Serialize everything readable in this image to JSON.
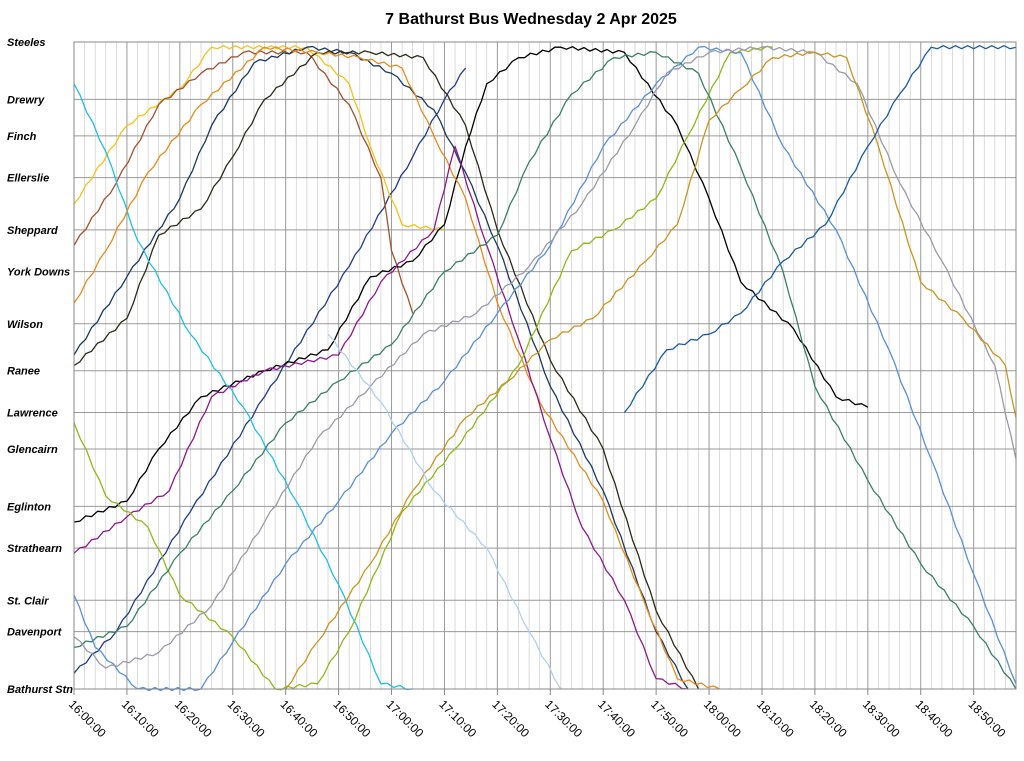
{
  "chart_data": {
    "type": "line",
    "title": "7 Bathurst Bus Wednesday 2 Apr 2025",
    "xlim": [
      "16:00:00",
      "18:58:00"
    ],
    "x_ticks": [
      "16:00:00",
      "16:10:00",
      "16:20:00",
      "16:30:00",
      "16:40:00",
      "16:50:00",
      "17:00:00",
      "17:10:00",
      "17:20:00",
      "17:30:00",
      "17:40:00",
      "17:50:00",
      "18:00:00",
      "18:10:00",
      "18:20:00",
      "18:30:00",
      "18:40:00",
      "18:50:00"
    ],
    "stops": [
      {
        "name": "Steeles",
        "km": 0
      },
      {
        "name": "Drewry",
        "km": 1.1
      },
      {
        "name": "Finch",
        "km": 1.8
      },
      {
        "name": "Ellerslie",
        "km": 2.6
      },
      {
        "name": "Sheppard",
        "km": 3.6
      },
      {
        "name": "York Downs",
        "km": 4.4
      },
      {
        "name": "Wilson",
        "km": 5.4
      },
      {
        "name": "Ranee",
        "km": 6.3
      },
      {
        "name": "Lawrence",
        "km": 7.1
      },
      {
        "name": "Glencairn",
        "km": 7.8
      },
      {
        "name": "Eglinton",
        "km": 8.9
      },
      {
        "name": "Strathearn",
        "km": 9.7
      },
      {
        "name": "St. Clair",
        "km": 10.7
      },
      {
        "name": "Davenport",
        "km": 11.3
      },
      {
        "name": "Bathurst Stn",
        "km": 12.4
      }
    ],
    "ylim": [
      0,
      12.4
    ],
    "y_inverted": true,
    "trips": [
      {
        "color": "#1f3c88",
        "points": [
          [
            "16:00",
            12.1
          ],
          [
            "16:08",
            11.3
          ],
          [
            "16:22",
            9.0
          ],
          [
            "16:36",
            6.8
          ],
          [
            "16:52",
            4.3
          ],
          [
            "17:04",
            2.2
          ],
          [
            "17:10",
            1.1
          ],
          [
            "17:14",
            0.5
          ]
        ]
      },
      {
        "color": "#f2c318",
        "points": [
          [
            "16:00",
            3.1
          ],
          [
            "16:10",
            1.6
          ],
          [
            "16:20",
            0.9
          ],
          [
            "16:26",
            0.1
          ],
          [
            "16:44",
            0.1
          ],
          [
            "16:52",
            0.8
          ],
          [
            "16:56",
            2.0
          ],
          [
            "17:02",
            3.5
          ],
          [
            "17:10",
            3.6
          ]
        ]
      },
      {
        "color": "#a0522d",
        "points": [
          [
            "16:00",
            3.9
          ],
          [
            "16:08",
            2.7
          ],
          [
            "16:16",
            1.2
          ],
          [
            "16:24",
            0.6
          ],
          [
            "16:32",
            0.2
          ],
          [
            "16:44",
            0.2
          ],
          [
            "16:52",
            1.2
          ],
          [
            "16:58",
            2.6
          ],
          [
            "17:00",
            4.0
          ],
          [
            "17:04",
            5.2
          ]
        ]
      },
      {
        "color": "#000000",
        "points": [
          [
            "16:00",
            9.2
          ],
          [
            "16:10",
            8.8
          ],
          [
            "16:16",
            7.8
          ],
          [
            "16:24",
            6.8
          ],
          [
            "16:36",
            6.3
          ],
          [
            "16:48",
            5.9
          ],
          [
            "16:56",
            4.5
          ],
          [
            "17:04",
            4.2
          ],
          [
            "17:10",
            3.5
          ],
          [
            "17:14",
            2.0
          ],
          [
            "17:18",
            0.8
          ],
          [
            "17:24",
            0.3
          ],
          [
            "17:32",
            0.1
          ],
          [
            "17:44",
            0.2
          ],
          [
            "17:54",
            1.6
          ],
          [
            "18:00",
            3.0
          ],
          [
            "18:06",
            4.6
          ],
          [
            "18:16",
            5.5
          ],
          [
            "18:24",
            6.8
          ],
          [
            "18:30",
            7.0
          ]
        ]
      },
      {
        "color": "#1a3a5c",
        "points": [
          [
            "16:00",
            6.0
          ],
          [
            "16:10",
            4.5
          ],
          [
            "16:20",
            3.0
          ],
          [
            "16:26",
            1.6
          ],
          [
            "16:34",
            0.4
          ],
          [
            "16:44",
            0.1
          ],
          [
            "16:52",
            0.2
          ],
          [
            "17:00",
            0.6
          ],
          [
            "17:08",
            1.3
          ],
          [
            "17:14",
            2.5
          ],
          [
            "17:20",
            3.9
          ],
          [
            "17:30",
            6.6
          ],
          [
            "17:40",
            8.6
          ],
          [
            "17:50",
            11.3
          ],
          [
            "17:56",
            12.4
          ]
        ]
      },
      {
        "color": "#2b2b1a",
        "points": [
          [
            "16:00",
            6.2
          ],
          [
            "16:10",
            5.3
          ],
          [
            "16:16",
            3.7
          ],
          [
            "16:24",
            3.2
          ],
          [
            "16:30",
            2.2
          ],
          [
            "16:36",
            1.1
          ],
          [
            "16:46",
            0.2
          ],
          [
            "16:56",
            0.2
          ],
          [
            "17:06",
            0.3
          ],
          [
            "17:14",
            1.6
          ],
          [
            "17:20",
            3.6
          ],
          [
            "17:30",
            6.1
          ],
          [
            "17:40",
            7.8
          ],
          [
            "17:50",
            10.9
          ],
          [
            "17:58",
            12.4
          ]
        ]
      },
      {
        "color": "#20c0e0",
        "points": [
          [
            "16:00",
            0.8
          ],
          [
            "16:06",
            2.1
          ],
          [
            "16:12",
            3.8
          ],
          [
            "16:22",
            5.6
          ],
          [
            "16:32",
            7.0
          ],
          [
            "16:42",
            8.8
          ],
          [
            "16:50",
            10.4
          ],
          [
            "16:58",
            12.3
          ],
          [
            "17:04",
            12.4
          ]
        ]
      },
      {
        "color": "#e88a1a",
        "points": [
          [
            "16:00",
            5.0
          ],
          [
            "16:06",
            4.0
          ],
          [
            "16:14",
            2.5
          ],
          [
            "16:24",
            1.2
          ],
          [
            "16:36",
            0.1
          ],
          [
            "16:46",
            0.2
          ],
          [
            "16:54",
            0.3
          ],
          [
            "17:02",
            0.5
          ],
          [
            "17:08",
            1.8
          ],
          [
            "17:14",
            3.0
          ],
          [
            "17:20",
            5.0
          ],
          [
            "17:28",
            6.9
          ],
          [
            "17:40",
            8.8
          ],
          [
            "17:48",
            10.8
          ],
          [
            "17:54",
            12.2
          ],
          [
            "18:02",
            12.4
          ]
        ]
      },
      {
        "color": "#8b1a8b",
        "points": [
          [
            "16:00",
            9.8
          ],
          [
            "16:10",
            9.1
          ],
          [
            "16:18",
            8.6
          ],
          [
            "16:26",
            6.8
          ],
          [
            "16:36",
            6.3
          ],
          [
            "16:50",
            6.0
          ],
          [
            "16:58",
            4.6
          ],
          [
            "17:08",
            3.6
          ],
          [
            "17:12",
            2.0
          ],
          [
            "17:18",
            3.9
          ],
          [
            "17:24",
            5.7
          ],
          [
            "17:30",
            7.6
          ],
          [
            "17:36",
            9.3
          ],
          [
            "17:44",
            10.7
          ],
          [
            "17:50",
            12.2
          ],
          [
            "17:56",
            12.4
          ]
        ]
      },
      {
        "color": "#8fb81a",
        "points": [
          [
            "16:00",
            7.3
          ],
          [
            "16:06",
            8.7
          ],
          [
            "16:14",
            9.3
          ],
          [
            "16:20",
            10.6
          ],
          [
            "16:30",
            11.4
          ],
          [
            "16:38",
            12.4
          ],
          [
            "16:46",
            12.3
          ],
          [
            "16:52",
            11.3
          ],
          [
            "17:02",
            9.0
          ],
          [
            "17:12",
            7.8
          ],
          [
            "17:24",
            6.2
          ],
          [
            "17:34",
            4.0
          ],
          [
            "17:42",
            3.6
          ],
          [
            "17:50",
            3.0
          ],
          [
            "17:56",
            1.8
          ],
          [
            "18:04",
            0.2
          ],
          [
            "18:12",
            0.1
          ]
        ]
      },
      {
        "color": "#5a8fd6",
        "points": [
          [
            "16:00",
            10.6
          ],
          [
            "16:04",
            11.6
          ],
          [
            "16:12",
            12.4
          ],
          [
            "16:24",
            12.4
          ],
          [
            "16:30",
            11.5
          ],
          [
            "16:40",
            10.0
          ],
          [
            "16:50",
            8.8
          ],
          [
            "17:00",
            7.5
          ],
          [
            "17:10",
            6.5
          ],
          [
            "17:20",
            5.2
          ],
          [
            "17:30",
            3.9
          ],
          [
            "17:40",
            2.0
          ],
          [
            "17:50",
            0.8
          ],
          [
            "17:58",
            0.1
          ],
          [
            "18:06",
            0.2
          ],
          [
            "18:14",
            2.0
          ],
          [
            "18:24",
            3.6
          ],
          [
            "18:34",
            5.9
          ],
          [
            "18:42",
            8.0
          ],
          [
            "18:50",
            10.2
          ],
          [
            "18:58",
            12.3
          ]
        ]
      },
      {
        "color": "#3a7f6a",
        "points": [
          [
            "16:00",
            11.6
          ],
          [
            "16:10",
            11.2
          ],
          [
            "16:20",
            9.8
          ],
          [
            "16:30",
            8.6
          ],
          [
            "16:40",
            7.3
          ],
          [
            "16:50",
            6.5
          ],
          [
            "17:00",
            5.8
          ],
          [
            "17:10",
            4.4
          ],
          [
            "17:20",
            3.7
          ],
          [
            "17:26",
            2.3
          ],
          [
            "17:34",
            1.0
          ],
          [
            "17:42",
            0.3
          ],
          [
            "17:50",
            0.2
          ],
          [
            "17:58",
            0.6
          ],
          [
            "18:06",
            2.4
          ],
          [
            "18:14",
            4.4
          ],
          [
            "18:20",
            6.6
          ],
          [
            "18:30",
            8.4
          ],
          [
            "18:40",
            10.0
          ],
          [
            "18:50",
            11.2
          ],
          [
            "18:58",
            12.4
          ]
        ]
      },
      {
        "color": "#9a9aa8",
        "points": [
          [
            "16:00",
            11.4
          ],
          [
            "16:06",
            12.0
          ],
          [
            "16:16",
            11.7
          ],
          [
            "16:26",
            10.8
          ],
          [
            "16:36",
            9.2
          ],
          [
            "16:46",
            7.6
          ],
          [
            "16:56",
            6.6
          ],
          [
            "17:06",
            5.6
          ],
          [
            "17:16",
            5.2
          ],
          [
            "17:26",
            4.3
          ],
          [
            "17:36",
            3.1
          ],
          [
            "17:46",
            1.6
          ],
          [
            "17:52",
            0.6
          ],
          [
            "18:00",
            0.2
          ],
          [
            "18:10",
            0.1
          ],
          [
            "18:20",
            0.2
          ],
          [
            "18:28",
            0.8
          ],
          [
            "18:36",
            2.7
          ],
          [
            "18:44",
            4.2
          ],
          [
            "18:54",
            6.2
          ],
          [
            "18:58",
            8.0
          ]
        ]
      },
      {
        "color": "#c8961e",
        "points": [
          [
            "16:40",
            12.4
          ],
          [
            "16:46",
            11.5
          ],
          [
            "16:56",
            10.0
          ],
          [
            "17:04",
            8.6
          ],
          [
            "17:14",
            7.2
          ],
          [
            "17:22",
            6.5
          ],
          [
            "17:30",
            5.7
          ],
          [
            "17:38",
            5.3
          ],
          [
            "17:48",
            4.2
          ],
          [
            "17:54",
            3.5
          ],
          [
            "18:00",
            1.5
          ],
          [
            "18:06",
            0.9
          ],
          [
            "18:12",
            0.3
          ],
          [
            "18:20",
            0.2
          ],
          [
            "18:26",
            0.3
          ],
          [
            "18:32",
            2.0
          ],
          [
            "18:40",
            4.6
          ],
          [
            "18:48",
            5.3
          ],
          [
            "18:56",
            6.2
          ],
          [
            "18:58",
            7.2
          ]
        ]
      },
      {
        "color": "#b0d0f0",
        "points": [
          [
            "16:48",
            5.6
          ],
          [
            "16:58",
            6.9
          ],
          [
            "17:08",
            8.6
          ],
          [
            "17:18",
            9.7
          ],
          [
            "17:26",
            11.3
          ],
          [
            "17:32",
            12.4
          ]
        ]
      },
      {
        "color": "#1a5aa0",
        "points": [
          [
            "17:44",
            7.1
          ],
          [
            "17:52",
            5.9
          ],
          [
            "18:00",
            5.6
          ],
          [
            "18:06",
            5.2
          ],
          [
            "18:14",
            4.2
          ],
          [
            "18:22",
            3.5
          ],
          [
            "18:30",
            2.0
          ],
          [
            "18:36",
            1.0
          ],
          [
            "18:42",
            0.1
          ],
          [
            "18:58",
            0.1
          ]
        ]
      }
    ]
  }
}
